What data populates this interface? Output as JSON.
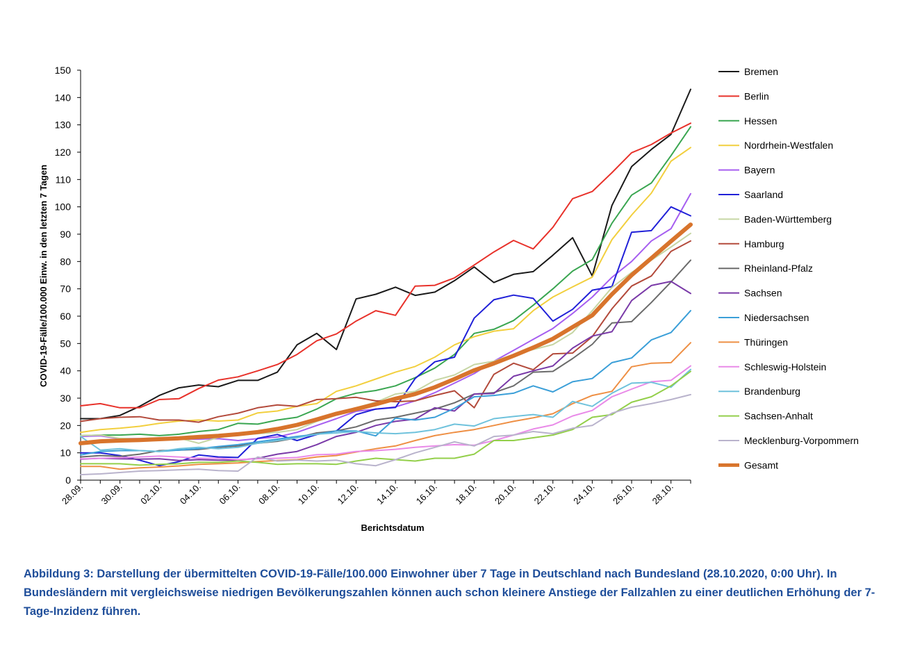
{
  "chart_data": {
    "type": "line",
    "xlabel": "Berichtsdatum",
    "ylabel": "COVID-19-Fälle/100.000 Einw. in den letzten 7 Tagen",
    "ylim": [
      0,
      150
    ],
    "yticks": [
      0,
      10,
      20,
      30,
      40,
      50,
      60,
      70,
      80,
      90,
      100,
      110,
      120,
      130,
      140,
      150
    ],
    "x_tick_labels": [
      "28.09.",
      "30.09.",
      "02.10.",
      "04.10.",
      "06.10.",
      "08.10.",
      "10.10.",
      "12.10.",
      "14.10.",
      "16.10.",
      "18.10.",
      "20.10.",
      "22.10.",
      "24.10.",
      "26.10.",
      "28.10."
    ],
    "legend_position": "right",
    "series": [
      {
        "name": "Bremen",
        "color": "#1a1a1a",
        "width": 2,
        "values": [
          22.5,
          22.5,
          23.7,
          27,
          31,
          33.8,
          34.8,
          34.2,
          36.5,
          36.5,
          39.5,
          49.5,
          53.7,
          47.8,
          66.3,
          68,
          70.6,
          67.6,
          68.8,
          73,
          78,
          72.3,
          75.3,
          76.3,
          82.3,
          88.7,
          74.7,
          100.5,
          114.7,
          121,
          126.5,
          143
        ]
      },
      {
        "name": "Berlin",
        "color": "#e8322b",
        "width": 2,
        "values": [
          27.2,
          28,
          26.5,
          26.5,
          29.5,
          29.8,
          33.5,
          36.6,
          37.8,
          40,
          42.3,
          46,
          51,
          53.5,
          58.2,
          62,
          60.3,
          71,
          71.3,
          74,
          78.7,
          83.5,
          87.7,
          84.6,
          92.5,
          103,
          105.6,
          112.5,
          119.8,
          122.8,
          127,
          130.6
        ]
      },
      {
        "name": "Hessen",
        "color": "#3aa651",
        "width": 2,
        "values": [
          16.3,
          16.5,
          16.5,
          16.8,
          16.3,
          16.8,
          17.8,
          18.5,
          20.8,
          20.5,
          22,
          23,
          26,
          29.8,
          31.8,
          32.8,
          34.5,
          37.5,
          41,
          46,
          53.7,
          55.2,
          58.4,
          64,
          70,
          76.5,
          80.7,
          94,
          104.3,
          108.7,
          118.7,
          129.3
        ]
      },
      {
        "name": "Nordrhein-Westfalen",
        "color": "#f2cf3e",
        "width": 2,
        "values": [
          17.5,
          18.5,
          19,
          19.7,
          20.8,
          21.6,
          22,
          21.6,
          22,
          24.6,
          25.3,
          27,
          28,
          32.5,
          34.5,
          37,
          39.5,
          41.6,
          45,
          49.5,
          52.5,
          54.5,
          55.4,
          62,
          67,
          70.7,
          74.3,
          88,
          97,
          105,
          116.7,
          121.7
        ]
      },
      {
        "name": "Bayern",
        "color": "#a65ef0",
        "width": 2,
        "values": [
          16,
          16.2,
          15.2,
          15.2,
          15.3,
          15,
          15,
          15.2,
          14.5,
          15.2,
          15.8,
          17.5,
          20,
          22.5,
          25.2,
          26,
          26.8,
          29,
          32,
          35.5,
          39,
          43.5,
          47.5,
          51.5,
          55.5,
          61,
          67,
          74.2,
          80,
          87.5,
          92,
          104.8
        ]
      },
      {
        "name": "Saarland",
        "color": "#2020d8",
        "width": 2,
        "values": [
          10,
          10,
          9,
          7.3,
          5.3,
          6.8,
          9.2,
          8.5,
          8.3,
          15.3,
          16.7,
          14.5,
          16.7,
          18,
          24,
          26,
          26.6,
          37.2,
          43.3,
          45,
          59.3,
          66,
          67.7,
          66.5,
          58.2,
          62.5,
          69.5,
          70.8,
          90.7,
          91.3,
          100,
          96.7
        ]
      },
      {
        "name": "Baden-Württemberg",
        "color": "#c6d6a4",
        "width": 2,
        "values": [
          16.3,
          16.5,
          15.3,
          15,
          14.8,
          15.4,
          13.5,
          15.6,
          16.5,
          17,
          17.5,
          18.5,
          21.5,
          23.8,
          26.5,
          28.5,
          31.5,
          32.5,
          36.5,
          38.5,
          42.3,
          43.5,
          46,
          47.8,
          49.6,
          54,
          62,
          70.5,
          76,
          80.5,
          85.3,
          90.3
        ]
      },
      {
        "name": "Hamburg",
        "color": "#b34a3b",
        "width": 2,
        "values": [
          21.5,
          22.5,
          23,
          23.2,
          22,
          22,
          21.2,
          23.2,
          24.5,
          26.5,
          27.5,
          27,
          29.5,
          29.8,
          30.3,
          29,
          28.7,
          29,
          31,
          32.7,
          26.5,
          38.7,
          42.8,
          40.4,
          46.2,
          46.5,
          52.5,
          62.7,
          71,
          74.7,
          83.7,
          87.5
        ]
      },
      {
        "name": "Rheinland-Pfalz",
        "color": "#6b6b6b",
        "width": 2,
        "values": [
          8.5,
          9,
          8.7,
          9.5,
          10.8,
          11,
          11.2,
          12,
          12.5,
          13.5,
          14.2,
          15.5,
          17.3,
          18,
          19.5,
          22,
          23,
          24.5,
          26,
          28.3,
          31.5,
          32,
          34.5,
          39.5,
          39.8,
          44.5,
          49.7,
          57.5,
          58,
          65,
          72.5,
          80.5
        ]
      },
      {
        "name": "Sachsen",
        "color": "#7a3aa8",
        "width": 2,
        "values": [
          7.7,
          8,
          7.8,
          7.7,
          7.8,
          7.2,
          7.5,
          7.3,
          7.3,
          8,
          9.5,
          10.5,
          13,
          16,
          17.5,
          20,
          21.5,
          22.3,
          26.5,
          25.3,
          31.5,
          31.7,
          38,
          40,
          41.8,
          48.3,
          52.7,
          54.3,
          65.7,
          71.2,
          72.7,
          68.3
        ]
      },
      {
        "name": "Niedersachsen",
        "color": "#3b9fd8",
        "width": 2,
        "values": [
          9.2,
          10.5,
          10.8,
          10.8,
          10.5,
          11,
          11.5,
          12.3,
          13,
          14,
          15,
          16,
          16.8,
          18,
          18,
          16.2,
          22.7,
          22,
          23,
          26.3,
          30.5,
          31,
          31.8,
          34.5,
          32.3,
          36,
          37.2,
          43,
          44.7,
          51.3,
          54,
          62
        ]
      },
      {
        "name": "Thüringen",
        "color": "#ee8f44",
        "width": 2,
        "values": [
          5,
          5,
          4,
          4.5,
          4.8,
          5.2,
          5.8,
          6,
          6.3,
          6.8,
          7.2,
          7.5,
          8.5,
          9,
          10.3,
          11.5,
          12.5,
          14.5,
          16.3,
          17.5,
          18.5,
          20,
          21.5,
          22.8,
          24.3,
          28,
          31,
          32.5,
          41.5,
          42.8,
          43,
          50.3
        ]
      },
      {
        "name": "Schleswig-Holstein",
        "color": "#e98ae8",
        "width": 2,
        "values": [
          7.8,
          8,
          8.2,
          8.5,
          8.8,
          8.5,
          8,
          8,
          7.5,
          7.8,
          8,
          8.3,
          9.3,
          9.5,
          10.5,
          10.8,
          11.3,
          12,
          12.5,
          13,
          12.8,
          14.5,
          16.5,
          18.7,
          20.2,
          23.5,
          25.5,
          30.5,
          33.3,
          36,
          36.5,
          41.8
        ]
      },
      {
        "name": "Brandenburg",
        "color": "#6fc2dc",
        "width": 2,
        "values": [
          16,
          11,
          11.5,
          10.8,
          10.5,
          11.5,
          12,
          11.5,
          12,
          13.5,
          14.5,
          15.5,
          16.8,
          17.3,
          17.8,
          17.3,
          17,
          17.5,
          18.5,
          20.5,
          19.8,
          22.5,
          23.3,
          24,
          23,
          28.8,
          27,
          31.8,
          35.5,
          35.8,
          34,
          40.5
        ]
      },
      {
        "name": "Sachsen-Anhalt",
        "color": "#93cf4a",
        "width": 2,
        "values": [
          6,
          6,
          6,
          5.5,
          5.8,
          6,
          6.5,
          6.5,
          7,
          6.5,
          5.8,
          6,
          6,
          5.8,
          7,
          8,
          7.5,
          7,
          8,
          8,
          9.5,
          14.5,
          14.5,
          15.5,
          16.5,
          18.5,
          23,
          24,
          28.5,
          30.5,
          34.5,
          39.8
        ]
      },
      {
        "name": "Mecklenburg-Vorpommern",
        "color": "#b9b3cc",
        "width": 2,
        "values": [
          2,
          2.3,
          2.8,
          3.3,
          3.5,
          3.8,
          4,
          3.5,
          3.3,
          8.5,
          7,
          7.3,
          7,
          7.3,
          6,
          5.3,
          7.5,
          10,
          12,
          14,
          12.5,
          16,
          16.5,
          17.8,
          17,
          19,
          20,
          24.5,
          26.7,
          28,
          29.5,
          31.3
        ]
      },
      {
        "name": "Gesamt",
        "color": "#d8742c",
        "width": 6,
        "values": [
          13.5,
          14.2,
          14.5,
          14.7,
          15,
          15.3,
          15.8,
          16.2,
          16.8,
          17.6,
          18.7,
          20.2,
          22.2,
          24.3,
          26,
          27.8,
          29.8,
          31.5,
          34,
          37,
          40.2,
          42.7,
          45.5,
          48.5,
          51.7,
          56,
          60.3,
          68,
          75,
          81.2,
          87.4,
          93.5
        ]
      }
    ],
    "caption": "Abbildung 3: Darstellung der übermittelten COVID-19-Fälle/100.000 Einwohner über 7 Tage in Deutschland nach Bundesland (28.10.2020, 0:00 Uhr). In Bundesländern mit vergleichsweise niedrigen Bevölkerungszahlen können auch schon kleinere Anstiege der Fallzahlen zu einer deutlichen Erhöhung der 7-Tage-Inzidenz führen."
  }
}
